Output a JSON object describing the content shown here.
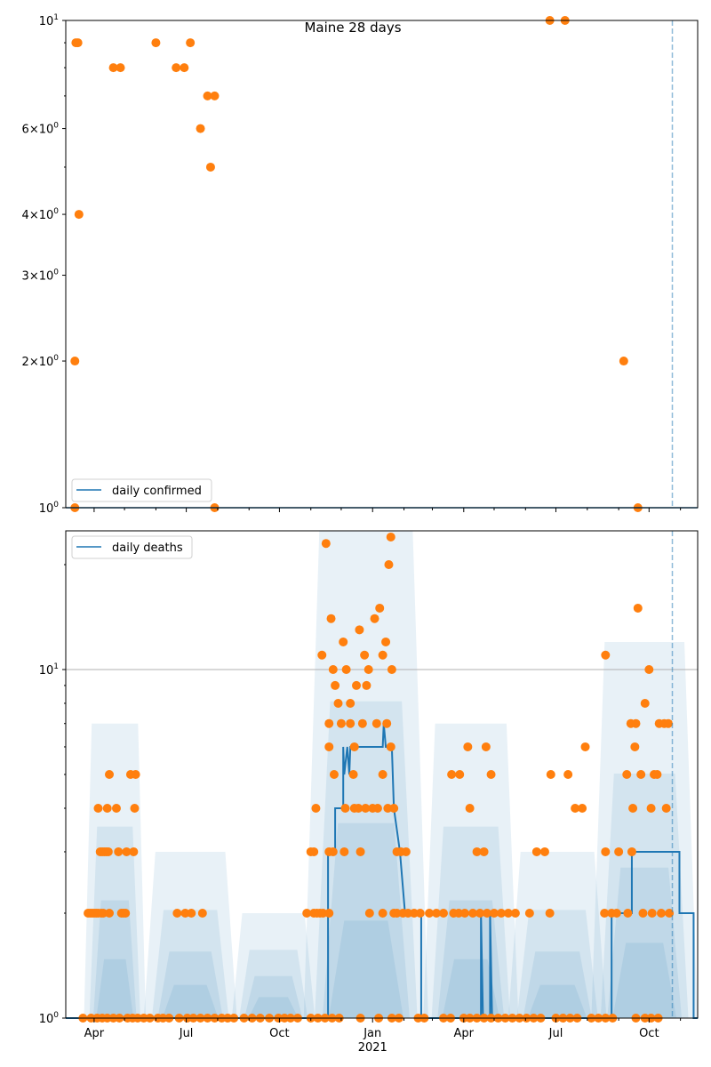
{
  "chart_data": [
    {
      "type": "scatter",
      "title": "Maine 28 days",
      "yscale": "log",
      "ylim": [
        1,
        10
      ],
      "xlim": [
        "2020-03-04",
        "2021-11-18"
      ],
      "ytick_labels": [
        {
          "value": 10,
          "base": "10",
          "exp": "1",
          "mult": ""
        },
        {
          "value": 6,
          "base": "10",
          "exp": "0",
          "mult": "6×"
        },
        {
          "value": 4,
          "base": "10",
          "exp": "0",
          "mult": "4×"
        },
        {
          "value": 3,
          "base": "10",
          "exp": "0",
          "mult": "3×"
        },
        {
          "value": 2,
          "base": "10",
          "exp": "0",
          "mult": "2×"
        },
        {
          "value": 1,
          "base": "10",
          "exp": "0",
          "mult": ""
        }
      ],
      "legend": {
        "label": "daily confirmed",
        "placement": "lower-left"
      },
      "line": {
        "name": "daily confirmed",
        "color": "#1f77b4",
        "value": 1
      },
      "vline_date": "2021-10-24",
      "points_color": "#ff7f0e",
      "points": [
        [
          "2020-03-13",
          1
        ],
        [
          "2020-03-13",
          2
        ],
        [
          "2020-03-14",
          9
        ],
        [
          "2020-03-16",
          9
        ],
        [
          "2020-03-17",
          4
        ],
        [
          "2020-04-20",
          8
        ],
        [
          "2020-04-27",
          8
        ],
        [
          "2020-06-01",
          9
        ],
        [
          "2020-06-21",
          8
        ],
        [
          "2020-06-29",
          8
        ],
        [
          "2020-07-05",
          9
        ],
        [
          "2020-07-15",
          6
        ],
        [
          "2020-07-22",
          7
        ],
        [
          "2020-07-25",
          5
        ],
        [
          "2020-07-29",
          7
        ],
        [
          "2020-07-29",
          1
        ],
        [
          "2021-06-25",
          10
        ],
        [
          "2021-07-10",
          10
        ],
        [
          "2021-09-06",
          2
        ],
        [
          "2021-09-20",
          1
        ]
      ]
    },
    {
      "type": "scatter",
      "yscale": "log",
      "ylim": [
        1,
        25
      ],
      "xlim": [
        "2020-03-04",
        "2021-11-18"
      ],
      "ytick_labels": [
        {
          "value": 10,
          "base": "10",
          "exp": "1",
          "mult": ""
        },
        {
          "value": 1,
          "base": "10",
          "exp": "0",
          "mult": ""
        }
      ],
      "xtick_labels": [
        {
          "date": "2020-04-01",
          "label": "Apr"
        },
        {
          "date": "2020-07-01",
          "label": "Jul"
        },
        {
          "date": "2020-10-01",
          "label": "Oct"
        },
        {
          "date": "2021-01-01",
          "label": "Jan",
          "sub": "2021"
        },
        {
          "date": "2021-04-01",
          "label": "Apr"
        },
        {
          "date": "2021-07-01",
          "label": "Jul"
        },
        {
          "date": "2021-10-01",
          "label": "Oct"
        }
      ],
      "legend": {
        "label": "daily deaths",
        "placement": "upper-left"
      },
      "grid_y": [
        10
      ],
      "vline_date": "2021-10-24",
      "line": {
        "name": "daily deaths",
        "color": "#1f77b4",
        "steps": [
          [
            "2020-03-04",
            1
          ],
          [
            "2020-11-18",
            1
          ],
          [
            "2020-11-18",
            3
          ],
          [
            "2020-11-25",
            3
          ],
          [
            "2020-11-25",
            4
          ],
          [
            "2020-12-03",
            4
          ],
          [
            "2020-12-03",
            6
          ],
          [
            "2020-12-04",
            5
          ],
          [
            "2020-12-07",
            6
          ],
          [
            "2020-12-09",
            5
          ],
          [
            "2020-12-10",
            6
          ],
          [
            "2021-01-11",
            6
          ],
          [
            "2021-01-12",
            7
          ],
          [
            "2021-01-14",
            6
          ],
          [
            "2021-01-20",
            6
          ],
          [
            "2021-01-22",
            4
          ],
          [
            "2021-01-28",
            3
          ],
          [
            "2021-02-02",
            2
          ],
          [
            "2021-02-18",
            2
          ],
          [
            "2021-02-18",
            1
          ],
          [
            "2021-04-18",
            1
          ],
          [
            "2021-04-18",
            2
          ],
          [
            "2021-04-20",
            1
          ],
          [
            "2021-04-27",
            1
          ],
          [
            "2021-04-27",
            2
          ],
          [
            "2021-04-29",
            1
          ],
          [
            "2021-08-25",
            1
          ],
          [
            "2021-08-25",
            2
          ],
          [
            "2021-09-14",
            2
          ],
          [
            "2021-09-14",
            3
          ],
          [
            "2021-10-31",
            3
          ],
          [
            "2021-10-31",
            2
          ],
          [
            "2021-11-14",
            2
          ],
          [
            "2021-11-14",
            1
          ],
          [
            "2021-11-18",
            1
          ]
        ]
      },
      "points_color": "#ff7f0e",
      "points": [
        [
          "2020-03-26",
          2
        ],
        [
          "2020-03-28",
          2
        ],
        [
          "2020-03-30",
          2
        ],
        [
          "2020-04-01",
          2
        ],
        [
          "2020-04-03",
          2
        ],
        [
          "2020-04-05",
          2
        ],
        [
          "2020-04-08",
          2
        ],
        [
          "2020-04-10",
          2
        ],
        [
          "2020-04-16",
          2
        ],
        [
          "2020-04-28",
          2
        ],
        [
          "2020-04-30",
          2
        ],
        [
          "2020-05-02",
          2
        ],
        [
          "2020-04-07",
          3
        ],
        [
          "2020-04-09",
          3
        ],
        [
          "2020-04-11",
          3
        ],
        [
          "2020-04-13",
          3
        ],
        [
          "2020-04-15",
          3
        ],
        [
          "2020-04-25",
          3
        ],
        [
          "2020-05-03",
          3
        ],
        [
          "2020-05-10",
          3
        ],
        [
          "2020-04-14",
          4
        ],
        [
          "2020-05-11",
          4
        ],
        [
          "2020-04-05",
          4
        ],
        [
          "2020-04-23",
          4
        ],
        [
          "2020-05-12",
          5
        ],
        [
          "2020-05-07",
          5
        ],
        [
          "2020-04-16",
          5
        ],
        [
          "2020-06-22",
          2
        ],
        [
          "2020-06-30",
          2
        ],
        [
          "2020-07-06",
          2
        ],
        [
          "2020-07-17",
          2
        ],
        [
          "2020-03-21",
          1
        ],
        [
          "2020-03-29",
          1
        ],
        [
          "2020-04-04",
          1
        ],
        [
          "2020-04-09",
          1
        ],
        [
          "2020-04-14",
          1
        ],
        [
          "2020-04-20",
          1
        ],
        [
          "2020-04-26",
          1
        ],
        [
          "2020-05-04",
          1
        ],
        [
          "2020-05-09",
          1
        ],
        [
          "2020-05-14",
          1
        ],
        [
          "2020-05-20",
          1
        ],
        [
          "2020-05-26",
          1
        ],
        [
          "2020-06-03",
          1
        ],
        [
          "2020-06-08",
          1
        ],
        [
          "2020-06-14",
          1
        ],
        [
          "2020-06-24",
          1
        ],
        [
          "2020-07-02",
          1
        ],
        [
          "2020-07-08",
          1
        ],
        [
          "2020-07-15",
          1
        ],
        [
          "2020-07-22",
          1
        ],
        [
          "2020-07-29",
          1
        ],
        [
          "2020-08-05",
          1
        ],
        [
          "2020-08-11",
          1
        ],
        [
          "2020-08-17",
          1
        ],
        [
          "2020-08-27",
          1
        ],
        [
          "2020-09-04",
          1
        ],
        [
          "2020-09-12",
          1
        ],
        [
          "2020-09-21",
          1
        ],
        [
          "2020-09-30",
          1
        ],
        [
          "2020-10-06",
          1
        ],
        [
          "2020-10-12",
          1
        ],
        [
          "2020-10-19",
          1
        ],
        [
          "2020-11-01",
          1
        ],
        [
          "2020-11-08",
          1
        ],
        [
          "2020-11-15",
          1
        ],
        [
          "2020-11-22",
          1
        ],
        [
          "2020-11-29",
          1
        ],
        [
          "2020-12-20",
          1
        ],
        [
          "2021-01-07",
          1
        ],
        [
          "2021-01-20",
          1
        ],
        [
          "2021-01-27",
          1
        ],
        [
          "2021-02-15",
          1
        ],
        [
          "2021-02-21",
          1
        ],
        [
          "2021-03-12",
          1
        ],
        [
          "2021-03-19",
          1
        ],
        [
          "2021-04-01",
          1
        ],
        [
          "2021-04-07",
          1
        ],
        [
          "2021-04-14",
          1
        ],
        [
          "2021-04-21",
          1
        ],
        [
          "2021-04-28",
          1
        ],
        [
          "2021-05-05",
          1
        ],
        [
          "2021-05-12",
          1
        ],
        [
          "2021-05-19",
          1
        ],
        [
          "2021-05-26",
          1
        ],
        [
          "2021-06-02",
          1
        ],
        [
          "2021-06-09",
          1
        ],
        [
          "2021-06-16",
          1
        ],
        [
          "2021-07-01",
          1
        ],
        [
          "2021-07-08",
          1
        ],
        [
          "2021-07-15",
          1
        ],
        [
          "2021-07-22",
          1
        ],
        [
          "2021-08-05",
          1
        ],
        [
          "2021-08-12",
          1
        ],
        [
          "2021-08-19",
          1
        ],
        [
          "2021-08-26",
          1
        ],
        [
          "2021-09-18",
          1
        ],
        [
          "2021-09-27",
          1
        ],
        [
          "2021-10-03",
          1
        ],
        [
          "2021-10-10",
          1
        ],
        [
          "2020-10-28",
          2
        ],
        [
          "2020-11-04",
          2
        ],
        [
          "2020-11-07",
          2
        ],
        [
          "2020-11-10",
          2
        ],
        [
          "2020-11-13",
          2
        ],
        [
          "2020-11-19",
          2
        ],
        [
          "2020-11-01",
          3
        ],
        [
          "2020-11-04",
          3
        ],
        [
          "2020-11-19",
          3
        ],
        [
          "2020-11-23",
          3
        ],
        [
          "2020-11-06",
          4
        ],
        [
          "2020-11-12",
          11
        ],
        [
          "2020-11-16",
          23
        ],
        [
          "2020-11-19",
          6
        ],
        [
          "2020-11-19",
          7
        ],
        [
          "2020-11-21",
          14
        ],
        [
          "2020-11-23",
          10
        ],
        [
          "2020-11-25",
          9
        ],
        [
          "2020-11-24",
          5
        ],
        [
          "2020-11-28",
          8
        ],
        [
          "2020-12-01",
          7
        ],
        [
          "2020-12-03",
          12
        ],
        [
          "2020-12-06",
          10
        ],
        [
          "2020-12-10",
          7
        ],
        [
          "2020-12-13",
          5
        ],
        [
          "2020-12-16",
          9
        ],
        [
          "2020-12-19",
          13
        ],
        [
          "2020-12-22",
          7
        ],
        [
          "2020-12-24",
          11
        ],
        [
          "2020-12-26",
          9
        ],
        [
          "2020-12-10",
          8
        ],
        [
          "2020-12-14",
          6
        ],
        [
          "2020-12-20",
          3
        ],
        [
          "2020-12-28",
          10
        ],
        [
          "2021-01-03",
          14
        ],
        [
          "2021-01-05",
          7
        ],
        [
          "2021-01-08",
          15
        ],
        [
          "2021-01-11",
          11
        ],
        [
          "2021-01-14",
          12
        ],
        [
          "2021-01-17",
          20
        ],
        [
          "2021-01-19",
          24
        ],
        [
          "2021-01-15",
          7
        ],
        [
          "2021-01-19",
          6
        ],
        [
          "2021-01-20",
          10
        ],
        [
          "2020-12-04",
          3
        ],
        [
          "2020-12-05",
          4
        ],
        [
          "2020-12-14",
          4
        ],
        [
          "2020-12-18",
          4
        ],
        [
          "2020-12-25",
          4
        ],
        [
          "2021-01-01",
          4
        ],
        [
          "2021-01-06",
          4
        ],
        [
          "2021-01-11",
          5
        ],
        [
          "2021-01-16",
          4
        ],
        [
          "2021-01-22",
          4
        ],
        [
          "2021-01-25",
          3
        ],
        [
          "2021-01-29",
          3
        ],
        [
          "2021-02-03",
          3
        ],
        [
          "2020-12-29",
          2
        ],
        [
          "2021-01-11",
          2
        ],
        [
          "2021-01-22",
          2
        ],
        [
          "2021-01-25",
          2
        ],
        [
          "2021-01-31",
          2
        ],
        [
          "2021-02-05",
          2
        ],
        [
          "2021-02-11",
          2
        ],
        [
          "2021-02-17",
          2
        ],
        [
          "2021-02-26",
          2
        ],
        [
          "2021-03-05",
          2
        ],
        [
          "2021-03-12",
          2
        ],
        [
          "2021-03-22",
          2
        ],
        [
          "2021-03-27",
          2
        ],
        [
          "2021-04-02",
          2
        ],
        [
          "2021-04-10",
          2
        ],
        [
          "2021-04-17",
          2
        ],
        [
          "2021-04-24",
          2
        ],
        [
          "2021-05-01",
          2
        ],
        [
          "2021-05-08",
          2
        ],
        [
          "2021-05-15",
          2
        ],
        [
          "2021-05-22",
          2
        ],
        [
          "2021-06-05",
          2
        ],
        [
          "2021-06-25",
          2
        ],
        [
          "2021-04-07",
          4
        ],
        [
          "2021-04-14",
          3
        ],
        [
          "2021-04-21",
          3
        ],
        [
          "2021-04-28",
          5
        ],
        [
          "2021-03-20",
          5
        ],
        [
          "2021-03-28",
          5
        ],
        [
          "2021-04-05",
          6
        ],
        [
          "2021-04-23",
          6
        ],
        [
          "2021-06-12",
          3
        ],
        [
          "2021-06-20",
          3
        ],
        [
          "2021-06-26",
          5
        ],
        [
          "2021-07-13",
          5
        ],
        [
          "2021-07-20",
          4
        ],
        [
          "2021-07-27",
          4
        ],
        [
          "2021-07-30",
          6
        ],
        [
          "2021-08-19",
          11
        ],
        [
          "2021-08-19",
          3
        ],
        [
          "2021-09-01",
          3
        ],
        [
          "2021-08-18",
          2
        ],
        [
          "2021-08-25",
          2
        ],
        [
          "2021-08-30",
          2
        ],
        [
          "2021-09-10",
          2
        ],
        [
          "2021-09-14",
          3
        ],
        [
          "2021-09-15",
          4
        ],
        [
          "2021-09-17",
          6
        ],
        [
          "2021-09-09",
          5
        ],
        [
          "2021-09-13",
          7
        ],
        [
          "2021-09-18",
          7
        ],
        [
          "2021-09-20",
          15
        ],
        [
          "2021-09-25",
          2
        ],
        [
          "2021-09-23",
          5
        ],
        [
          "2021-09-27",
          8
        ],
        [
          "2021-10-01",
          10
        ],
        [
          "2021-10-03",
          4
        ],
        [
          "2021-10-06",
          5
        ],
        [
          "2021-10-09",
          5
        ],
        [
          "2021-10-11",
          7
        ],
        [
          "2021-10-16",
          7
        ],
        [
          "2021-10-20",
          7
        ],
        [
          "2021-10-18",
          4
        ],
        [
          "2021-10-13",
          2
        ],
        [
          "2021-10-21",
          2
        ],
        [
          "2021-10-04",
          2
        ]
      ]
    }
  ]
}
